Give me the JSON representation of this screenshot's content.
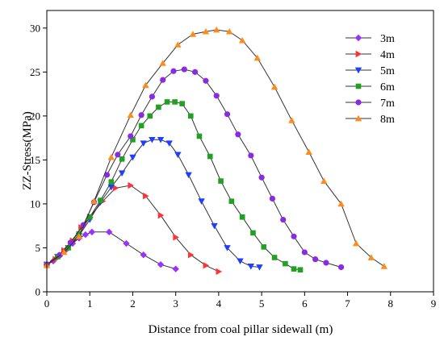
{
  "chart_data": {
    "type": "line",
    "title": "",
    "xlabel": "Distance from coal pillar sidewall (m)",
    "ylabel": "ZZ-Stress(MPa)",
    "xlim": [
      0,
      9
    ],
    "ylim": [
      0,
      32
    ],
    "xticks": [
      "0",
      "1",
      "2",
      "3",
      "4",
      "5",
      "6",
      "7",
      "8",
      "9"
    ],
    "yticks": [
      "0",
      "5",
      "10",
      "15",
      "20",
      "25",
      "30"
    ],
    "grid": false,
    "legend_position": "top-right",
    "series": [
      {
        "name": "3m",
        "color": "#9B30FF",
        "marker": "diamond",
        "x": [
          0,
          0.15,
          0.3,
          0.45,
          0.6,
          0.75,
          0.9,
          1.05,
          1.45,
          1.85,
          2.25,
          2.65,
          3.0
        ],
        "y": [
          3.1,
          3.5,
          4.1,
          4.8,
          5.5,
          6.1,
          6.5,
          6.8,
          6.8,
          5.5,
          4.2,
          3.1,
          2.6
        ]
      },
      {
        "name": "4m",
        "color": "#FF3333",
        "marker": "triangle-right",
        "x": [
          0,
          0.2,
          0.4,
          0.6,
          0.8,
          1.0,
          1.3,
          1.6,
          1.95,
          2.3,
          2.65,
          3.0,
          3.35,
          3.7,
          4.0
        ],
        "y": [
          3.1,
          3.7,
          4.7,
          5.8,
          7.3,
          8.5,
          10.3,
          11.8,
          12.1,
          10.9,
          8.7,
          6.2,
          4.2,
          3.0,
          2.3
        ]
      },
      {
        "name": "5m",
        "color": "#1F3FFF",
        "marker": "triangle-down",
        "x": [
          0,
          0.25,
          0.5,
          0.75,
          1.0,
          1.25,
          1.5,
          1.75,
          2.0,
          2.25,
          2.45,
          2.65,
          2.85,
          3.05,
          3.3,
          3.6,
          3.9,
          4.2,
          4.5,
          4.75,
          4.95
        ],
        "y": [
          3.1,
          4.0,
          5.0,
          6.4,
          8.2,
          10.2,
          11.9,
          13.5,
          15.3,
          16.9,
          17.3,
          17.3,
          16.9,
          15.6,
          13.3,
          10.3,
          7.5,
          5.0,
          3.5,
          2.9,
          2.8
        ]
      },
      {
        "name": "6m",
        "color": "#22A022",
        "marker": "square",
        "x": [
          0,
          0.25,
          0.5,
          0.75,
          1.0,
          1.25,
          1.5,
          1.75,
          2.0,
          2.2,
          2.4,
          2.6,
          2.8,
          2.98,
          3.15,
          3.35,
          3.55,
          3.8,
          4.05,
          4.3,
          4.55,
          4.8,
          5.05,
          5.3,
          5.55,
          5.75,
          5.9
        ],
        "y": [
          3.1,
          4.0,
          5.0,
          6.6,
          8.5,
          10.4,
          12.5,
          15.1,
          17.3,
          18.9,
          20.0,
          21.0,
          21.6,
          21.6,
          21.4,
          20.0,
          17.7,
          15.4,
          12.6,
          10.3,
          8.5,
          6.7,
          5.1,
          3.9,
          3.2,
          2.6,
          2.5
        ]
      },
      {
        "name": "7m",
        "color": "#8A2BE2",
        "marker": "circle",
        "x": [
          0,
          0.3,
          0.55,
          0.85,
          1.1,
          1.4,
          1.65,
          1.95,
          2.2,
          2.45,
          2.7,
          2.95,
          3.2,
          3.45,
          3.7,
          3.95,
          4.2,
          4.45,
          4.75,
          5.0,
          5.25,
          5.5,
          5.75,
          6.0,
          6.25,
          6.5,
          6.85
        ],
        "y": [
          3.1,
          4.2,
          5.6,
          7.6,
          10.2,
          13.3,
          15.6,
          17.7,
          20.1,
          22.2,
          24.1,
          25.1,
          25.3,
          25.0,
          24.0,
          22.3,
          20.2,
          17.9,
          15.5,
          13.0,
          10.6,
          8.2,
          6.3,
          4.5,
          3.7,
          3.3,
          2.8
        ]
      },
      {
        "name": "8m",
        "color": "#FF8C1A",
        "marker": "triangle-up",
        "x": [
          0,
          0.4,
          0.75,
          1.1,
          1.5,
          1.95,
          2.3,
          2.7,
          3.05,
          3.4,
          3.7,
          3.95,
          4.25,
          4.55,
          4.9,
          5.3,
          5.7,
          6.1,
          6.45,
          6.85,
          7.2,
          7.55,
          7.85
        ],
        "y": [
          3.0,
          4.5,
          6.3,
          10.3,
          15.3,
          20.1,
          23.5,
          26.0,
          28.1,
          29.3,
          29.6,
          29.8,
          29.6,
          28.6,
          26.6,
          23.3,
          19.5,
          15.9,
          12.6,
          10.0,
          5.5,
          3.9,
          2.9
        ]
      }
    ]
  }
}
